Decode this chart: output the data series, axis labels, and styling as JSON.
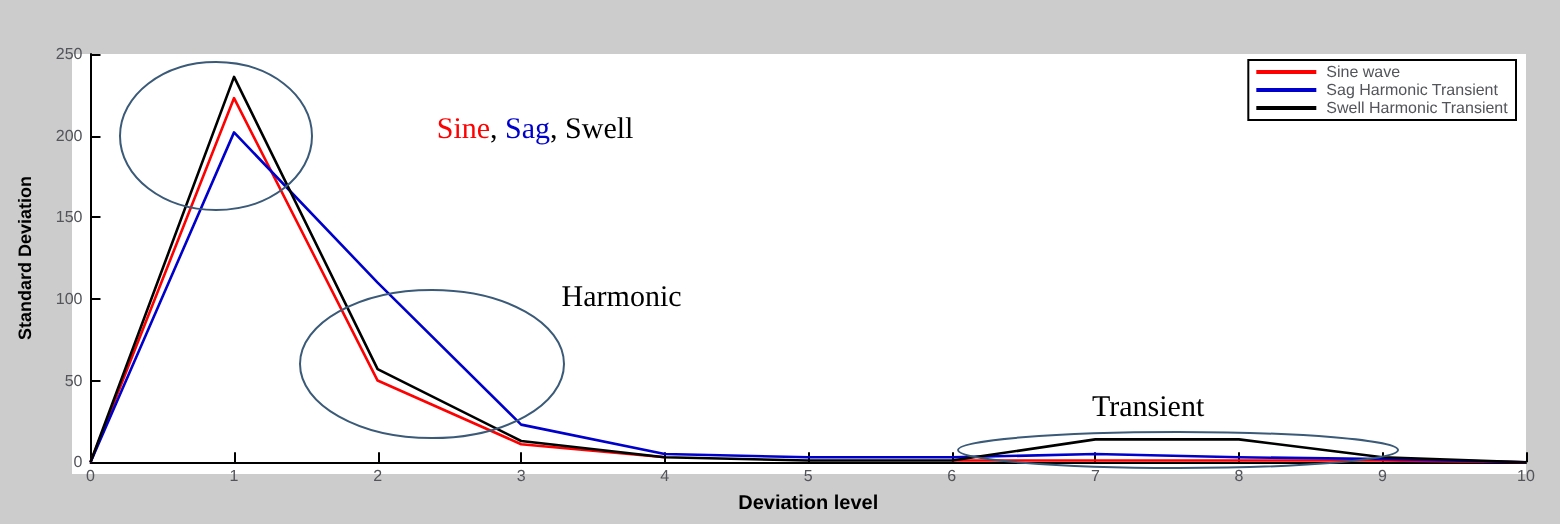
{
  "chart_data": {
    "type": "line",
    "xlabel": "Deviation level",
    "ylabel": "Standard Deviation",
    "x": [
      0,
      1,
      2,
      3,
      4,
      5,
      6,
      7,
      8,
      9,
      10
    ],
    "xlim": [
      0,
      10
    ],
    "xticks": [
      0,
      1,
      2,
      3,
      4,
      5,
      6,
      7,
      8,
      9,
      10
    ],
    "ylim": [
      0,
      250
    ],
    "yticks": [
      0,
      50,
      100,
      150,
      200,
      250
    ],
    "grid": false,
    "legend": "top right",
    "series": [
      {
        "name": "Sine wave",
        "color": "#ff0000",
        "values": [
          0,
          223,
          50,
          11,
          3,
          null,
          1,
          1,
          1,
          1,
          0
        ]
      },
      {
        "name": "Sag Harmonic Transient",
        "color": "#0000cc",
        "values": [
          0,
          202,
          110,
          23,
          5,
          3,
          3,
          5,
          3,
          2,
          0
        ]
      },
      {
        "name": "Swell Harmonic Transient",
        "color": "#000000",
        "values": [
          0,
          236,
          57,
          13,
          3,
          1,
          1,
          14,
          14,
          3,
          0
        ]
      }
    ],
    "annotations": [
      "Sine, Sag, Swell",
      "Harmonic",
      "Transient"
    ]
  }
}
